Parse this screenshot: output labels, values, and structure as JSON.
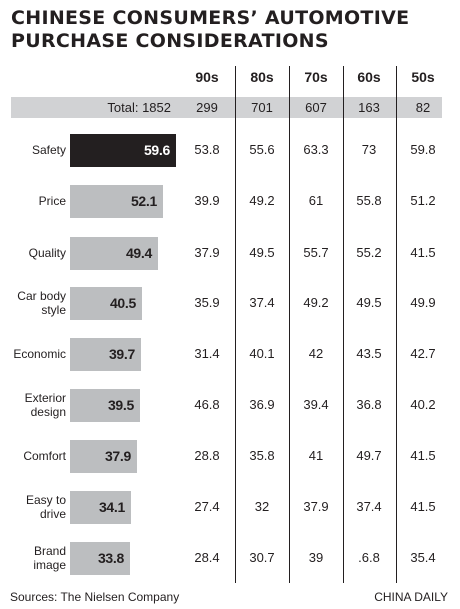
{
  "chart_data": {
    "type": "bar",
    "title": "CHINESE CONSUMERS’ AUTOMOTIVE PURCHASE CONSIDERATIONS",
    "total_label": "Total: 1852",
    "columns": [
      "90s",
      "80s",
      "70s",
      "60s",
      "50s"
    ],
    "column_totals": [
      "299",
      "701",
      "607",
      "163",
      "82"
    ],
    "categories": [
      "Safety",
      "Price",
      "Quality",
      "Car body\nstyle",
      "Economic",
      "Exterior\ndesign",
      "Comfort",
      "Easy to\ndrive",
      "Brand\nimage"
    ],
    "values": [
      59.6,
      52.1,
      49.4,
      40.5,
      39.7,
      39.5,
      37.9,
      34.1,
      33.8
    ],
    "value_labels": [
      "59.6",
      "52.1",
      "49.4",
      "40.5",
      "39.7",
      "39.5",
      "37.9",
      "34.1",
      "33.8"
    ],
    "highlight_index": 0,
    "table": [
      [
        "53.8",
        "55.6",
        "63.3",
        "73",
        "59.8"
      ],
      [
        "39.9",
        "49.2",
        "61",
        "55.8",
        "51.2"
      ],
      [
        "37.9",
        "49.5",
        "55.7",
        "55.2",
        "41.5"
      ],
      [
        "35.9",
        "37.4",
        "49.2",
        "49.5",
        "49.9"
      ],
      [
        "31.4",
        "40.1",
        "42",
        "43.5",
        "42.7"
      ],
      [
        "46.8",
        "36.9",
        "39.4",
        "36.8",
        "40.2"
      ],
      [
        "28.8",
        "35.8",
        "41",
        "49.7",
        "41.5"
      ],
      [
        "27.4",
        "32",
        "37.9",
        "37.4",
        "41.5"
      ],
      [
        "28.4",
        "30.7",
        "39",
        ".6.8",
        "35.4"
      ]
    ],
    "colors": {
      "highlight": "#231f20",
      "bar": "#bcbec0",
      "band": "#d1d2d4"
    }
  },
  "source": "Sources: The Nielsen Company",
  "credit": "CHINA DAILY"
}
